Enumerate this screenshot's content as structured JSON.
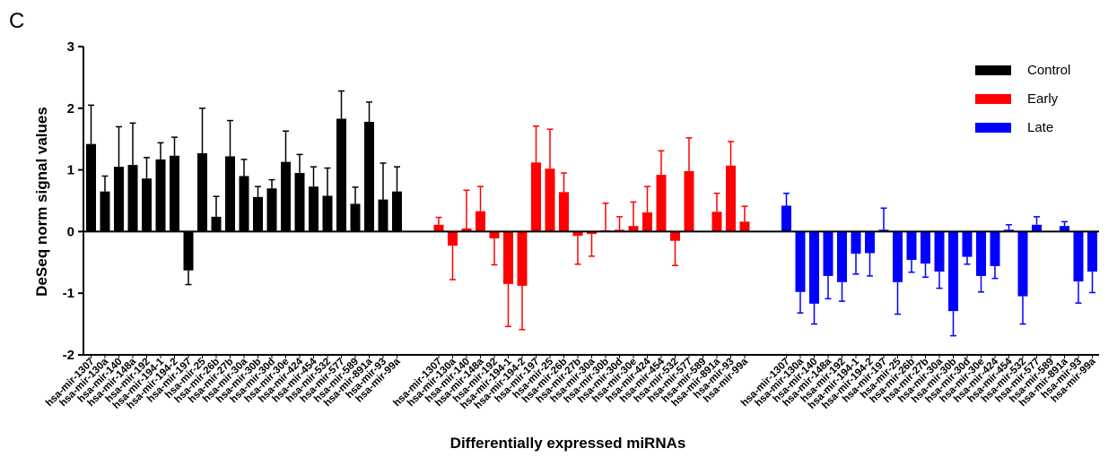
{
  "panel_label": "C",
  "chart_data": {
    "type": "bar",
    "xlabel": "Differentially expressed miRNAs",
    "ylabel": "DeSeq norm signal values",
    "ylim": [
      -2,
      3
    ],
    "yticks": [
      -2,
      -1,
      0,
      1,
      2,
      3
    ],
    "grid": false,
    "legend_position": "top-right",
    "error_bars": true,
    "series": [
      {
        "name": "Control",
        "color": "#000000",
        "categories": [
          "hsa-mir-1307",
          "hsa-mir-130a",
          "hsa-mir-140",
          "hsa-mir-148a",
          "hsa-mir-192",
          "hsa-mir-194-1",
          "hsa-mir-194-2",
          "hsa-mir-197",
          "hsa-mir-25",
          "hsa-mir-26b",
          "hsa-mir-27b",
          "hsa-mir-30a",
          "hsa-mir-30b",
          "hsa-mir-30d",
          "hsa-mir-30e",
          "hsa-mir-424",
          "hsa-mir-454",
          "hsa-mir-532",
          "hsa-mir-577",
          "hsa-mir-589",
          "hsa-mir-891a",
          "hsa-mir-93",
          "hsa-mir-99a"
        ],
        "values": [
          1.42,
          0.65,
          1.05,
          1.08,
          0.86,
          1.17,
          1.23,
          -0.63,
          1.27,
          0.24,
          1.22,
          0.9,
          0.56,
          0.7,
          1.13,
          0.95,
          0.73,
          0.58,
          1.83,
          0.45,
          1.78,
          0.52,
          0.65
        ],
        "errors": [
          0.63,
          0.25,
          0.65,
          0.68,
          0.34,
          0.27,
          0.3,
          0.23,
          0.73,
          0.33,
          0.58,
          0.27,
          0.17,
          0.14,
          0.5,
          0.3,
          0.32,
          0.45,
          0.45,
          0.27,
          0.32,
          0.59,
          0.4
        ]
      },
      {
        "name": "Early",
        "color": "#ff0000",
        "categories": [
          "hsa-mir-1307",
          "hsa-mir-130a",
          "hsa-mir-140",
          "hsa-mir-148a",
          "hsa-mir-192",
          "hsa-mir-194-1",
          "hsa-mir-194-2",
          "hsa-mir-197",
          "hsa-mir-25",
          "hsa-mir-26b",
          "hsa-mir-27b",
          "hsa-mir-30a",
          "hsa-mir-30b",
          "hsa-mir-30d",
          "hsa-mir-30e",
          "hsa-mir-424",
          "hsa-mir-454",
          "hsa-mir-532",
          "hsa-mir-577",
          "hsa-mir-589",
          "hsa-mir-891a",
          "hsa-mir-93",
          "hsa-mir-99a"
        ],
        "values": [
          0.11,
          -0.23,
          0.05,
          0.33,
          -0.11,
          -0.85,
          -0.88,
          1.12,
          1.02,
          0.64,
          -0.07,
          -0.04,
          0.02,
          0.03,
          0.09,
          0.31,
          0.92,
          -0.15,
          0.98,
          0,
          0.32,
          1.07,
          0.16
        ],
        "errors": [
          0.12,
          0.55,
          0.62,
          0.4,
          0.43,
          0.69,
          0.71,
          0.59,
          0.64,
          0.31,
          0.46,
          0.36,
          0.44,
          0.21,
          0.39,
          0.42,
          0.39,
          0.4,
          0.54,
          0,
          0.3,
          0.39,
          0.25
        ]
      },
      {
        "name": "Late",
        "color": "#0000ff",
        "categories": [
          "hsa-mir-1307",
          "hsa-mir-130a",
          "hsa-mir-140",
          "hsa-mir-148a",
          "hsa-mir-192",
          "hsa-mir-194-1",
          "hsa-mir-194-2",
          "hsa-mir-197",
          "hsa-mir-25",
          "hsa-mir-26b",
          "hsa-mir-27b",
          "hsa-mir-30a",
          "hsa-mir-30b",
          "hsa-mir-30d",
          "hsa-mir-30e",
          "hsa-mir-424",
          "hsa-mir-454",
          "hsa-mir-532",
          "hsa-mir-577",
          "hsa-mir-589",
          "hsa-mir-891a",
          "hsa-mir-93",
          "hsa-mir-99a"
        ],
        "values": [
          0.42,
          -0.98,
          -1.17,
          -0.72,
          -0.82,
          -0.36,
          -0.35,
          0.03,
          -0.82,
          -0.46,
          -0.52,
          -0.65,
          -1.29,
          -0.41,
          -0.72,
          -0.56,
          0.03,
          -1.05,
          0.11,
          0,
          0.09,
          -0.81,
          -0.65
        ],
        "errors": [
          0.2,
          0.34,
          0.33,
          0.37,
          0.31,
          0.33,
          0.37,
          0.35,
          0.52,
          0.2,
          0.22,
          0.27,
          0.4,
          0.12,
          0.26,
          0.2,
          0.08,
          0.45,
          0.13,
          0,
          0.07,
          0.35,
          0.34
        ]
      }
    ]
  }
}
